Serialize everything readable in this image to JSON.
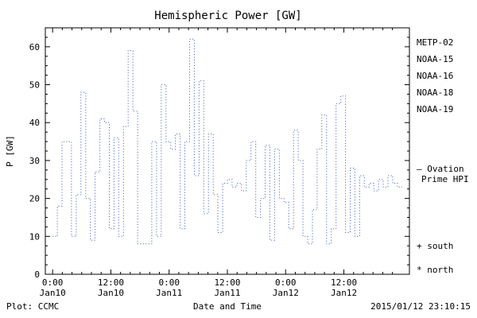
{
  "title": "Hemispheric Power [GW]",
  "axes": {
    "ylabel": "P [GW]",
    "xlabel": "Date and Time",
    "y_ticks": [
      "0",
      "10",
      "20",
      "30",
      "40",
      "50",
      "60"
    ],
    "x_ticks": [
      [
        "0:00",
        "Jan10"
      ],
      [
        "12:00",
        "Jan10"
      ],
      [
        "0:00",
        "Jan11"
      ],
      [
        "12:00",
        "Jan11"
      ],
      [
        "0:00",
        "Jan12"
      ],
      [
        "12:00",
        "Jan12"
      ]
    ]
  },
  "legend": {
    "satellites": [
      {
        "label": "METP-02",
        "color": "#000000"
      },
      {
        "label": "NOAA-15",
        "color": "#2233cc"
      },
      {
        "label": "NOAA-16",
        "color": "#33aacc"
      },
      {
        "label": "NOAA-18",
        "color": "#66cc66"
      },
      {
        "label": "NOAA-19",
        "color": "#ee9933"
      }
    ],
    "ovation_line1": "– Ovation",
    "ovation_line2": "Prime HPI",
    "south_marker": "+ south",
    "north_marker": "* north"
  },
  "footer": {
    "plot_credit": "Plot: CCMC",
    "timestamp": "2015/01/12 23:10:15"
  },
  "colors": {
    "line": "#3050c8",
    "ovation_label": "#2233cc",
    "credit": "#cc2200",
    "axis": "#000000"
  },
  "chart_data": {
    "type": "line",
    "style": "dotted-steps",
    "title": "Hemispheric Power [GW]",
    "xlabel": "Date and Time",
    "ylabel": "P [GW]",
    "xlim_hours": [
      -1.5,
      73.5
    ],
    "ylim": [
      0,
      65
    ],
    "x_tick_hours": [
      0,
      12,
      24,
      36,
      48,
      60
    ],
    "x_tick_labels": [
      "0:00 Jan10",
      "12:00 Jan10",
      "0:00 Jan11",
      "12:00 Jan11",
      "0:00 Jan12",
      "12:00 Jan12"
    ],
    "y_tick_values": [
      0,
      10,
      20,
      30,
      40,
      50,
      60
    ],
    "legend_position": "right",
    "grid": false,
    "series": [
      {
        "name": "Ovation Prime HPI",
        "color": "#3050c8",
        "t_start_hours": 0,
        "dt_hours": 0.973,
        "values": [
          10,
          18,
          35,
          35,
          10,
          21,
          48,
          20,
          9,
          27,
          41,
          40,
          12,
          36,
          10,
          39,
          59,
          43,
          8,
          8,
          8,
          35,
          10,
          50,
          35,
          33,
          37,
          12,
          35,
          62,
          26,
          51,
          16,
          37,
          21,
          11,
          24,
          25,
          23,
          24,
          22,
          30,
          35,
          15,
          20,
          34,
          9,
          33,
          20,
          19,
          12,
          38,
          30,
          10,
          8,
          17,
          33,
          42,
          8,
          12,
          45,
          47,
          11,
          28,
          10,
          26,
          23,
          24,
          22,
          25,
          23,
          26,
          24,
          23
        ]
      }
    ]
  }
}
